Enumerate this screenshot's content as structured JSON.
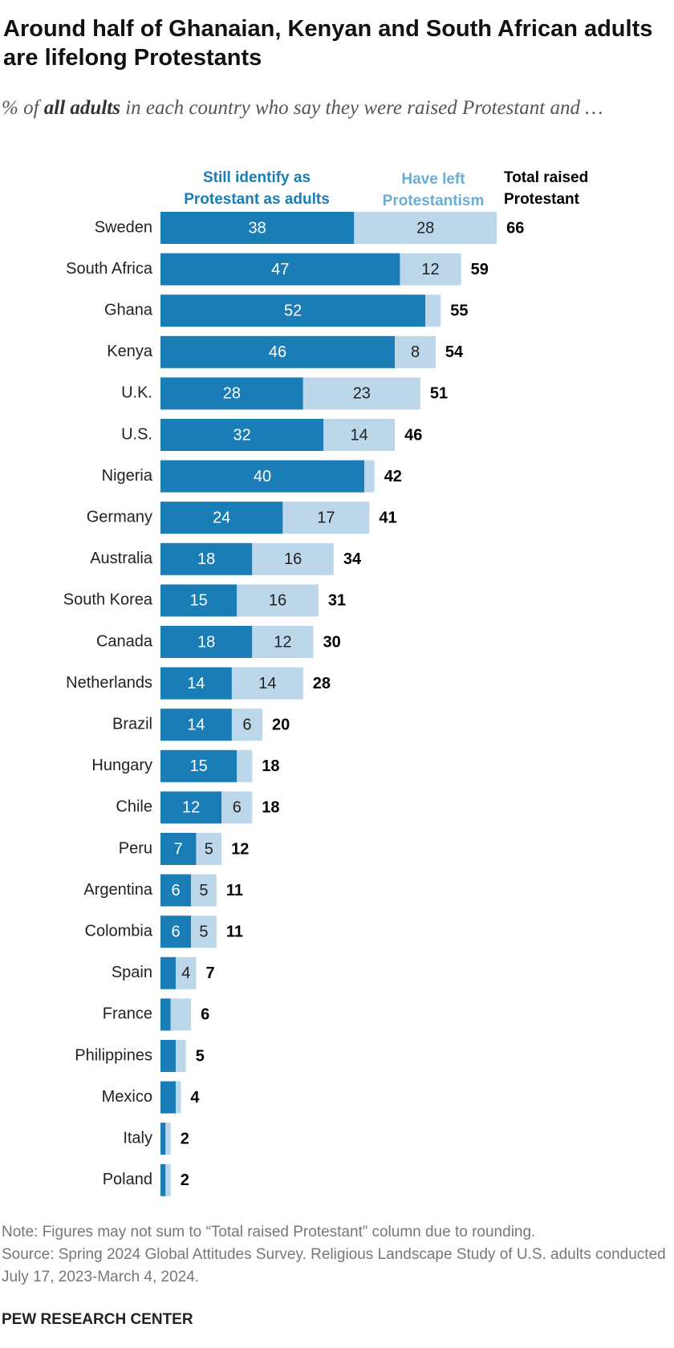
{
  "chart_data": {
    "type": "stacked-bar",
    "title": "Around half of Ghanaian, Kenyan and South African adults are lifelong Protestants",
    "subtitle": [
      "% of",
      "all adults",
      "in each country who say they were raised Protestant and …"
    ],
    "categories": [
      "Sweden",
      "South Africa",
      "Ghana",
      "Kenya",
      "U.K.",
      "U.S.",
      "Nigeria",
      "Germany",
      "Australia",
      "South Korea",
      "Canada",
      "Netherlands",
      "Brazil",
      "Hungary",
      "Chile",
      "Peru",
      "Argentina",
      "Colombia",
      "Spain",
      "France",
      "Philippines",
      "Mexico",
      "Italy",
      "Poland"
    ],
    "series": [
      {
        "name": "Still identify as Protestant as adults",
        "color": "#1a7db6",
        "label_color": "#ffffff",
        "values": [
          38,
          47,
          52,
          46,
          28,
          32,
          40,
          24,
          18,
          15,
          18,
          14,
          14,
          15,
          12,
          7,
          6,
          6,
          3,
          2,
          3,
          3,
          1,
          1
        ],
        "value_labels": [
          "38",
          "47",
          "52",
          "46",
          "28",
          "32",
          "40",
          "24",
          "18",
          "15",
          "18",
          "14",
          "14",
          "15",
          "12",
          "7",
          "6",
          "6",
          null,
          null,
          null,
          null,
          null,
          null
        ]
      },
      {
        "name": "Have left Protestantism",
        "color": "#bcd6ea",
        "label_color": "#222222",
        "legend_color": "#6aaed6",
        "values": [
          28,
          12,
          3,
          8,
          23,
          14,
          2,
          17,
          16,
          16,
          12,
          14,
          6,
          3,
          6,
          5,
          5,
          5,
          4,
          4,
          2,
          1,
          1,
          1
        ],
        "value_labels": [
          "28",
          "12",
          null,
          "8",
          "23",
          "14",
          null,
          "17",
          "16",
          "16",
          "12",
          "14",
          "6",
          null,
          "6",
          "5",
          "5",
          "5",
          "4",
          null,
          null,
          null,
          null,
          null
        ]
      }
    ],
    "totals": {
      "name": "Total raised Protestant",
      "color": "#000000",
      "values": [
        66,
        59,
        55,
        54,
        51,
        46,
        42,
        41,
        34,
        31,
        30,
        28,
        20,
        18,
        18,
        12,
        11,
        11,
        7,
        6,
        5,
        4,
        2,
        2
      ]
    },
    "notes": [
      "Note: Figures may not sum to “Total raised Protestant” column due to rounding.",
      "Source: Spring 2024 Global Attitudes Survey. Religious Landscape Study of U.S. adults conducted July 17, 2023-March 4, 2024."
    ],
    "source_label": "PEW RESEARCH CENTER"
  }
}
